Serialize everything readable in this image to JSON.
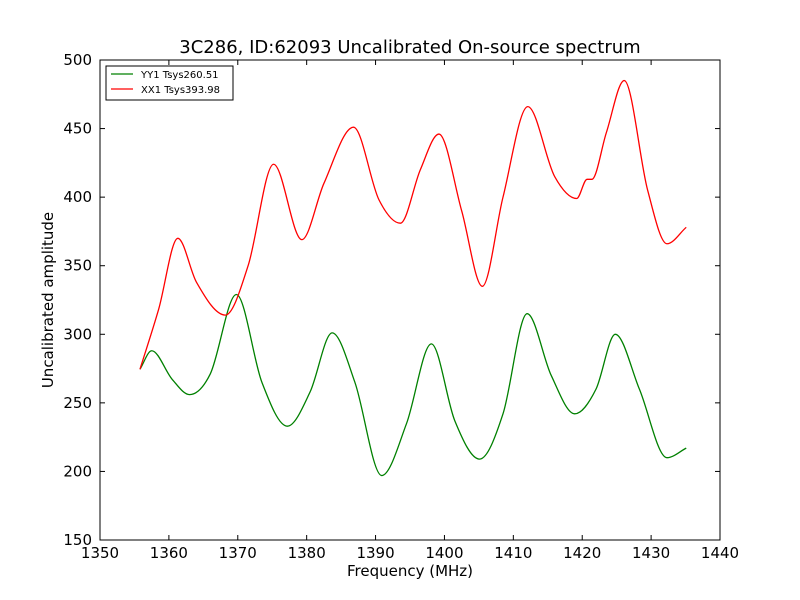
{
  "chart_data": {
    "type": "line",
    "title": "3C286, ID:62093 Uncalibrated On-source spectrum",
    "xlabel": "Frequency (MHz)",
    "ylabel": "Uncalibrated amplitude",
    "xlim": [
      1350,
      1440
    ],
    "ylim": [
      150,
      500
    ],
    "xticks": [
      1350,
      1360,
      1370,
      1380,
      1390,
      1400,
      1410,
      1420,
      1430,
      1440
    ],
    "yticks": [
      150,
      200,
      250,
      300,
      350,
      400,
      450,
      500
    ],
    "grid": false,
    "legend": "top-left",
    "series": [
      {
        "name": "YY1 Tsys260.51",
        "color": "#008000",
        "x": [
          1355.8,
          1357.5,
          1360.5,
          1363,
          1366,
          1369.8,
          1373.5,
          1377.2,
          1380.5,
          1383.7,
          1387,
          1390.9,
          1394.5,
          1398.1,
          1401.5,
          1405.1,
          1408.5,
          1412,
          1415.5,
          1418.9,
          1422,
          1424.8,
          1428.3,
          1432.3,
          1435.1
        ],
        "y": [
          274.5,
          288,
          267,
          256,
          271,
          329,
          265,
          233,
          258,
          301,
          265,
          197,
          235,
          293,
          237,
          209,
          242,
          315,
          270,
          242,
          260,
          300,
          260,
          210,
          217
        ]
      },
      {
        "name": "XX1 Tsys393.98",
        "color": "#ff0000",
        "x": [
          1355.8,
          1358.5,
          1361.3,
          1364,
          1368.2,
          1371.5,
          1375.2,
          1379.3,
          1382.5,
          1386.8,
          1390.5,
          1393.6,
          1396.5,
          1399.2,
          1402.5,
          1405.5,
          1408.5,
          1412.1,
          1416,
          1419.2,
          1420.7,
          1421.4,
          1423.5,
          1426.1,
          1429.5,
          1432.3,
          1435.1
        ],
        "y": [
          274.5,
          318,
          370,
          338,
          314,
          350,
          424,
          369,
          410,
          451,
          398,
          381,
          420,
          446,
          390,
          335,
          400,
          466,
          415,
          399,
          413,
          413,
          447,
          485,
          405,
          366,
          378
        ]
      }
    ]
  }
}
